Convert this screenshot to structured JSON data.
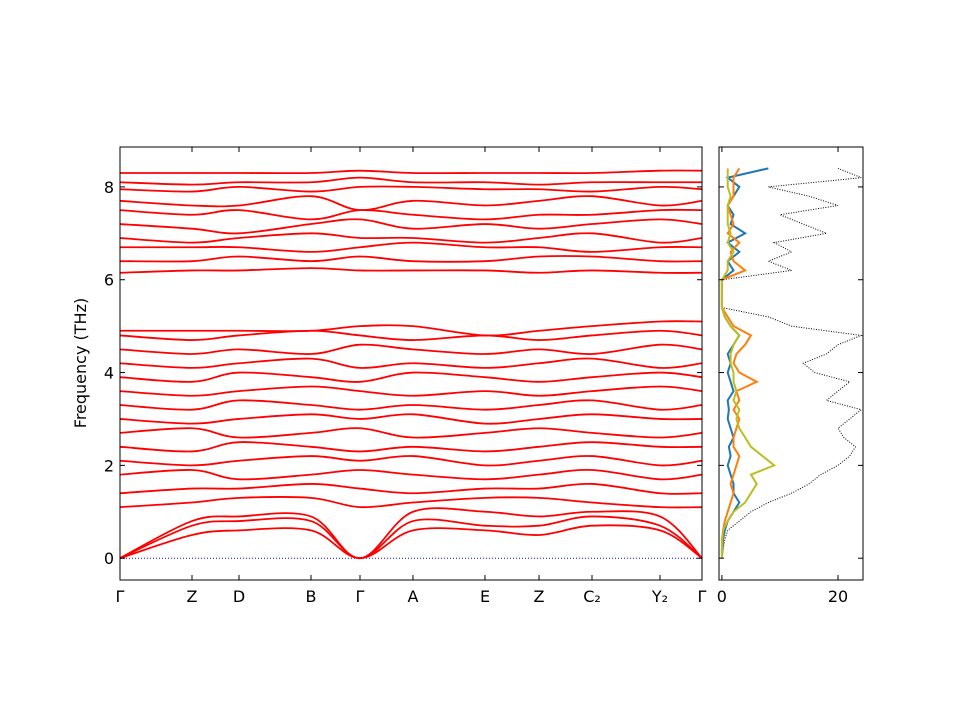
{
  "chart_data": [
    {
      "type": "band",
      "ylabel": "Frequency (THz)",
      "color": "#ff0000",
      "zero_line_color": "#0000ff",
      "x": [
        0,
        0.72,
        1.19,
        1.91,
        2.4,
        2.93,
        3.65,
        4.19,
        4.72,
        5.4,
        5.82
      ],
      "xlim": [
        0,
        5.82
      ],
      "xticks": [
        {
          "value": 0,
          "label": "Γ"
        },
        {
          "value": 0.72,
          "label": "Z"
        },
        {
          "value": 1.19,
          "label": "D"
        },
        {
          "value": 1.91,
          "label": "B"
        },
        {
          "value": 2.4,
          "label": "Γ"
        },
        {
          "value": 2.93,
          "label": "A"
        },
        {
          "value": 3.65,
          "label": "E"
        },
        {
          "value": 4.19,
          "label": "Z"
        },
        {
          "value": 4.72,
          "label": "C₂"
        },
        {
          "value": 5.4,
          "label": "Y₂"
        },
        {
          "value": 5.82,
          "label": "Γ"
        }
      ],
      "ylim": [
        -0.47,
        8.86
      ],
      "yticks": [
        0,
        2,
        4,
        6,
        8
      ],
      "series": [
        {
          "values": [
            0,
            0.5,
            0.6,
            0.6,
            0,
            0.6,
            0.6,
            0.5,
            0.7,
            0.6,
            0
          ]
        },
        {
          "values": [
            0,
            0.7,
            0.8,
            0.8,
            0,
            0.8,
            0.7,
            0.7,
            0.9,
            0.7,
            0
          ]
        },
        {
          "values": [
            0,
            0.8,
            0.9,
            0.9,
            0,
            1.0,
            1.0,
            0.9,
            1.0,
            0.9,
            0
          ]
        },
        {
          "values": [
            1.1,
            1.2,
            1.3,
            1.3,
            1.1,
            1.2,
            1.3,
            1.3,
            1.2,
            1.1,
            1.1
          ]
        },
        {
          "values": [
            1.4,
            1.5,
            1.5,
            1.6,
            1.5,
            1.4,
            1.5,
            1.5,
            1.6,
            1.4,
            1.4
          ]
        },
        {
          "values": [
            1.8,
            1.9,
            1.7,
            1.8,
            1.9,
            1.8,
            1.7,
            1.8,
            1.9,
            1.7,
            1.8
          ]
        },
        {
          "values": [
            2.1,
            2.0,
            2.1,
            2.2,
            2.1,
            2.2,
            2.0,
            2.1,
            2.2,
            2.0,
            2.1
          ]
        },
        {
          "values": [
            2.4,
            2.3,
            2.5,
            2.4,
            2.3,
            2.4,
            2.3,
            2.4,
            2.5,
            2.4,
            2.4
          ]
        },
        {
          "values": [
            2.7,
            2.8,
            2.6,
            2.7,
            2.8,
            2.6,
            2.7,
            2.8,
            2.7,
            2.6,
            2.7
          ]
        },
        {
          "values": [
            3.0,
            2.9,
            3.0,
            3.1,
            3.0,
            3.1,
            2.9,
            3.0,
            3.1,
            3.0,
            3.0
          ]
        },
        {
          "values": [
            3.3,
            3.2,
            3.4,
            3.3,
            3.2,
            3.3,
            3.2,
            3.3,
            3.4,
            3.2,
            3.3
          ]
        },
        {
          "values": [
            3.6,
            3.5,
            3.6,
            3.7,
            3.6,
            3.5,
            3.6,
            3.5,
            3.6,
            3.7,
            3.6
          ]
        },
        {
          "values": [
            3.9,
            3.8,
            4.0,
            3.9,
            3.8,
            4.0,
            3.9,
            3.8,
            3.9,
            4.0,
            3.9
          ]
        },
        {
          "values": [
            4.2,
            4.1,
            4.2,
            4.3,
            4.1,
            4.2,
            4.1,
            4.2,
            4.3,
            4.1,
            4.2
          ]
        },
        {
          "values": [
            4.5,
            4.4,
            4.5,
            4.4,
            4.6,
            4.5,
            4.4,
            4.5,
            4.4,
            4.6,
            4.5
          ]
        },
        {
          "values": [
            4.8,
            4.7,
            4.8,
            4.9,
            4.8,
            4.7,
            4.8,
            4.7,
            4.8,
            4.9,
            4.8
          ]
        },
        {
          "values": [
            4.9,
            4.9,
            4.9,
            4.9,
            5.0,
            5.0,
            4.8,
            4.9,
            5.0,
            5.1,
            5.1
          ]
        },
        {
          "values": [
            6.15,
            6.2,
            6.2,
            6.25,
            6.2,
            6.2,
            6.2,
            6.15,
            6.2,
            6.15,
            6.15
          ]
        },
        {
          "values": [
            6.4,
            6.4,
            6.5,
            6.4,
            6.5,
            6.4,
            6.4,
            6.5,
            6.5,
            6.4,
            6.4
          ]
        },
        {
          "values": [
            6.7,
            6.7,
            6.7,
            6.6,
            6.7,
            6.8,
            6.7,
            6.7,
            6.6,
            6.7,
            6.7
          ]
        },
        {
          "values": [
            6.9,
            6.8,
            6.9,
            7.0,
            6.9,
            6.9,
            6.8,
            6.9,
            7.0,
            6.8,
            6.9
          ]
        },
        {
          "values": [
            7.2,
            7.1,
            7.0,
            7.2,
            7.3,
            7.1,
            7.2,
            7.1,
            7.2,
            7.3,
            7.2
          ]
        },
        {
          "values": [
            7.5,
            7.4,
            7.5,
            7.3,
            7.5,
            7.4,
            7.3,
            7.4,
            7.4,
            7.5,
            7.5
          ]
        },
        {
          "values": [
            7.7,
            7.6,
            7.6,
            7.8,
            7.5,
            7.7,
            7.6,
            7.7,
            7.8,
            7.6,
            7.7
          ]
        },
        {
          "values": [
            7.95,
            7.9,
            8.0,
            7.9,
            8.0,
            8.0,
            7.95,
            7.95,
            7.9,
            8.0,
            7.95
          ]
        },
        {
          "values": [
            8.1,
            8.05,
            8.1,
            8.1,
            8.2,
            8.1,
            8.1,
            8.05,
            8.1,
            8.1,
            8.1
          ]
        },
        {
          "values": [
            8.3,
            8.3,
            8.3,
            8.3,
            8.35,
            8.3,
            8.3,
            8.3,
            8.3,
            8.35,
            8.35
          ]
        }
      ]
    },
    {
      "type": "dos",
      "xlim": [
        -0.5,
        24.3
      ],
      "xticks": [
        0,
        20
      ],
      "y": [
        0,
        0.2,
        0.4,
        0.6,
        0.8,
        1.0,
        1.2,
        1.4,
        1.6,
        1.8,
        2.0,
        2.2,
        2.4,
        2.6,
        2.8,
        3.0,
        3.2,
        3.4,
        3.6,
        3.8,
        4.0,
        4.2,
        4.4,
        4.6,
        4.8,
        5.0,
        5.2,
        5.4,
        5.6,
        5.8,
        6.0,
        6.2,
        6.4,
        6.6,
        6.8,
        7.0,
        7.2,
        7.4,
        7.6,
        7.8,
        8.0,
        8.2,
        8.4
      ],
      "series": [
        {
          "color": "#000000",
          "dotted": true,
          "values": [
            0,
            0.2,
            0.5,
            1,
            3,
            5,
            8,
            12,
            15,
            17,
            20,
            22,
            23,
            21,
            20,
            22,
            24,
            18,
            20,
            22,
            16,
            14,
            18,
            20,
            24,
            12,
            8,
            0,
            0,
            0,
            0,
            12,
            8,
            12,
            9,
            18,
            14,
            10,
            20,
            15,
            8,
            24,
            20
          ]
        },
        {
          "color": "#1f77b4",
          "values": [
            0,
            0.1,
            0.2,
            0.5,
            1,
            2,
            3,
            2,
            2,
            1.5,
            1,
            1.5,
            1.2,
            2,
            1.5,
            1,
            1.2,
            1,
            2,
            1.5,
            1,
            1.5,
            1,
            2,
            3,
            1.5,
            0.5,
            0,
            0,
            0,
            0,
            2,
            1,
            3,
            1,
            4,
            1.5,
            2,
            1,
            2,
            3,
            1,
            8
          ]
        },
        {
          "color": "#ff7f0e",
          "values": [
            0,
            0,
            0.1,
            0.2,
            0.5,
            1,
            1.5,
            2,
            1.5,
            2,
            2.5,
            3,
            2,
            2,
            2.5,
            3,
            2,
            3,
            2.5,
            6,
            3,
            2,
            2.5,
            4,
            5,
            2,
            1,
            0,
            0,
            0,
            0,
            4,
            2,
            1.5,
            3,
            1,
            2,
            1.5,
            1,
            2,
            2,
            2,
            3
          ]
        },
        {
          "color": "#bcbd22",
          "values": [
            0,
            0,
            0,
            0.2,
            1,
            2,
            4,
            5,
            6,
            5,
            9,
            7,
            5,
            4,
            3,
            2.5,
            3,
            2,
            2.5,
            2,
            2,
            1.5,
            1.5,
            2,
            3,
            1.5,
            0.5,
            0,
            0,
            0,
            0,
            1,
            1,
            2,
            1,
            1.5,
            1,
            1,
            1,
            1.5,
            1,
            1,
            1
          ]
        }
      ]
    }
  ]
}
